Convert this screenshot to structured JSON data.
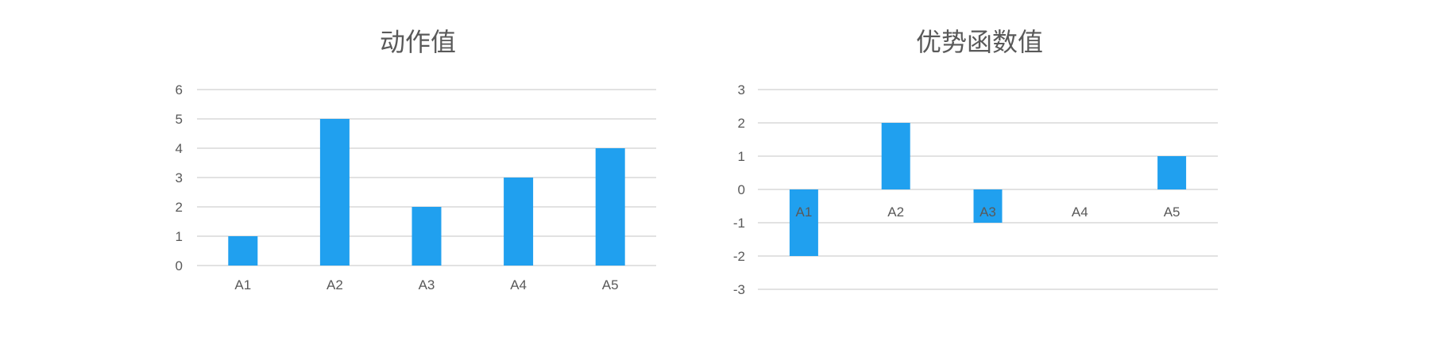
{
  "chart_data": [
    {
      "type": "bar",
      "title": "动作值",
      "categories": [
        "A1",
        "A2",
        "A3",
        "A4",
        "A5"
      ],
      "values": [
        1,
        5,
        2,
        3,
        4
      ],
      "ylim": [
        0,
        6
      ],
      "yticks": [
        "0",
        "1",
        "2",
        "3",
        "4",
        "5",
        "6"
      ],
      "xlabel": "",
      "ylabel": "",
      "grid": true,
      "legend": "none"
    },
    {
      "type": "bar",
      "title": "优势函数值",
      "categories": [
        "A1",
        "A2",
        "A3",
        "A4",
        "A5"
      ],
      "values": [
        -2,
        2,
        -1,
        0,
        1
      ],
      "ylim": [
        -3,
        3
      ],
      "yticks": [
        "-3",
        "-2",
        "-1",
        "0",
        "1",
        "2",
        "3"
      ],
      "xlabel": "",
      "ylabel": "",
      "grid": true,
      "legend": "none"
    }
  ],
  "colors": {
    "bar": "#20a0ef",
    "grid": "#d9d9d9",
    "text": "#595959"
  }
}
